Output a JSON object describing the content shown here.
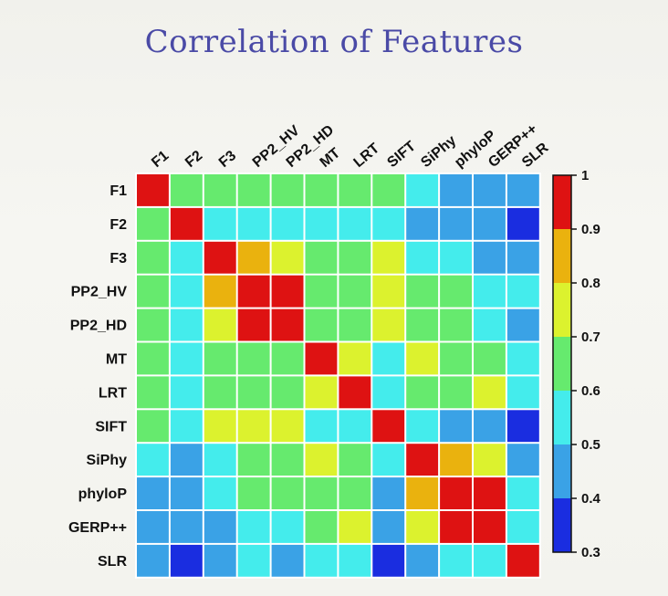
{
  "title": "Correlation of Features",
  "chart_data": {
    "type": "heatmap",
    "title": "Correlation of Features",
    "labels": [
      "F1",
      "F2",
      "F3",
      "PP2_HV",
      "PP2_HD",
      "MT",
      "LRT",
      "SIFT",
      "SiPhy",
      "phyloP",
      "GERP++",
      "SLR"
    ],
    "matrix": [
      [
        1.0,
        0.65,
        0.65,
        0.65,
        0.65,
        0.65,
        0.65,
        0.65,
        0.55,
        0.45,
        0.45,
        0.45
      ],
      [
        0.65,
        1.0,
        0.55,
        0.55,
        0.55,
        0.55,
        0.55,
        0.55,
        0.45,
        0.45,
        0.45,
        0.35
      ],
      [
        0.65,
        0.55,
        1.0,
        0.85,
        0.75,
        0.65,
        0.65,
        0.75,
        0.55,
        0.55,
        0.45,
        0.45
      ],
      [
        0.65,
        0.55,
        0.85,
        1.0,
        1.0,
        0.65,
        0.65,
        0.75,
        0.65,
        0.65,
        0.55,
        0.55
      ],
      [
        0.65,
        0.55,
        0.75,
        1.0,
        1.0,
        0.65,
        0.65,
        0.75,
        0.65,
        0.65,
        0.55,
        0.45
      ],
      [
        0.65,
        0.55,
        0.65,
        0.65,
        0.65,
        1.0,
        0.75,
        0.55,
        0.75,
        0.65,
        0.65,
        0.55
      ],
      [
        0.65,
        0.55,
        0.65,
        0.65,
        0.65,
        0.75,
        1.0,
        0.55,
        0.65,
        0.65,
        0.75,
        0.55
      ],
      [
        0.65,
        0.55,
        0.75,
        0.75,
        0.75,
        0.55,
        0.55,
        1.0,
        0.55,
        0.45,
        0.45,
        0.35
      ],
      [
        0.55,
        0.45,
        0.55,
        0.65,
        0.65,
        0.75,
        0.65,
        0.55,
        1.0,
        0.85,
        0.75,
        0.45
      ],
      [
        0.45,
        0.45,
        0.55,
        0.65,
        0.65,
        0.65,
        0.65,
        0.45,
        0.85,
        1.0,
        1.0,
        0.55
      ],
      [
        0.45,
        0.45,
        0.45,
        0.55,
        0.55,
        0.65,
        0.75,
        0.45,
        0.75,
        1.0,
        1.0,
        0.55
      ],
      [
        0.45,
        0.35,
        0.45,
        0.55,
        0.45,
        0.55,
        0.55,
        0.35,
        0.45,
        0.55,
        0.55,
        1.0
      ]
    ],
    "colorbar": {
      "min": 0.3,
      "max": 1.0,
      "ticks": [
        "0.3",
        "0.4",
        "0.5",
        "0.6",
        "0.7",
        "0.8",
        "0.9",
        "1"
      ],
      "bins": [
        {
          "from": 0.3,
          "to": 0.4,
          "color": "#1a2de0"
        },
        {
          "from": 0.4,
          "to": 0.5,
          "color": "#3aa2e6"
        },
        {
          "from": 0.5,
          "to": 0.6,
          "color": "#44ecec"
        },
        {
          "from": 0.6,
          "to": 0.7,
          "color": "#66ea6e"
        },
        {
          "from": 0.7,
          "to": 0.8,
          "color": "#dcf22e"
        },
        {
          "from": 0.8,
          "to": 0.9,
          "color": "#eab20e"
        },
        {
          "from": 0.9,
          "to": 1.0,
          "color": "#de1212"
        }
      ]
    },
    "grid": true
  }
}
